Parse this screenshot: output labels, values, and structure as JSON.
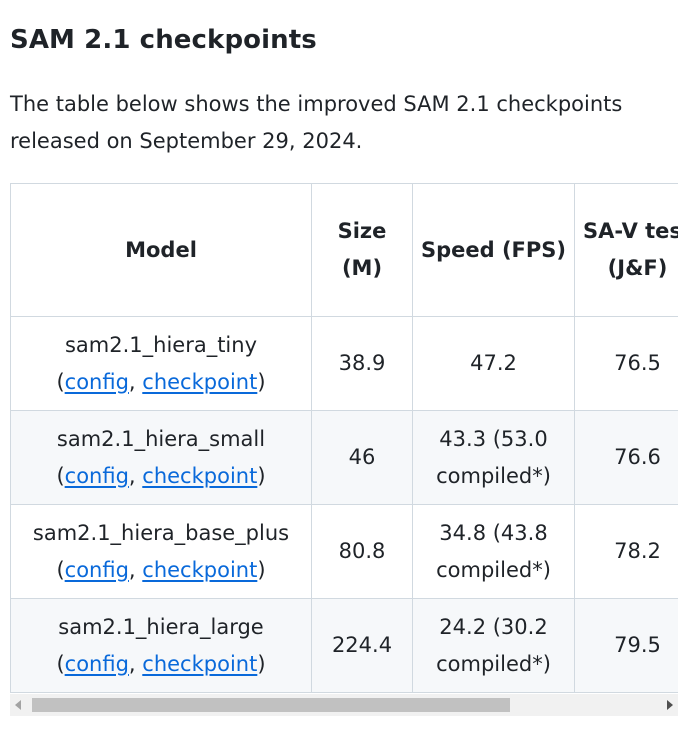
{
  "heading": "SAM 2.1 checkpoints",
  "intro": "The table below shows the improved SAM 2.1 checkpoints released on September 29, 2024.",
  "table": {
    "headers": {
      "model": "Model",
      "size": "Size (M)",
      "speed": "Speed (FPS)",
      "sav": "SA-V test (J&F)"
    },
    "rows": [
      {
        "model": "sam2.1_hiera_tiny",
        "config": "config",
        "checkpoint": "checkpoint",
        "size": "38.9",
        "speed": "47.2",
        "sav": "76.5"
      },
      {
        "model": "sam2.1_hiera_small",
        "config": "config",
        "checkpoint": "checkpoint",
        "size": "46",
        "speed": "43.3 (53.0 compiled*)",
        "sav": "76.6"
      },
      {
        "model": "sam2.1_hiera_base_plus",
        "config": "config",
        "checkpoint": "checkpoint",
        "size": "80.8",
        "speed": "34.8 (43.8 compiled*)",
        "sav": "78.2"
      },
      {
        "model": "sam2.1_hiera_large",
        "config": "config",
        "checkpoint": "checkpoint",
        "size": "224.4",
        "speed": "24.2 (30.2 compiled*)",
        "sav": "79.5"
      }
    ]
  },
  "scrollbar": {
    "left_arrow_icon": "triangle-left",
    "right_arrow_icon": "triangle-right"
  },
  "colors": {
    "link": "#0969da",
    "border": "#d1d9e0",
    "alt_row": "#f6f8fa"
  }
}
